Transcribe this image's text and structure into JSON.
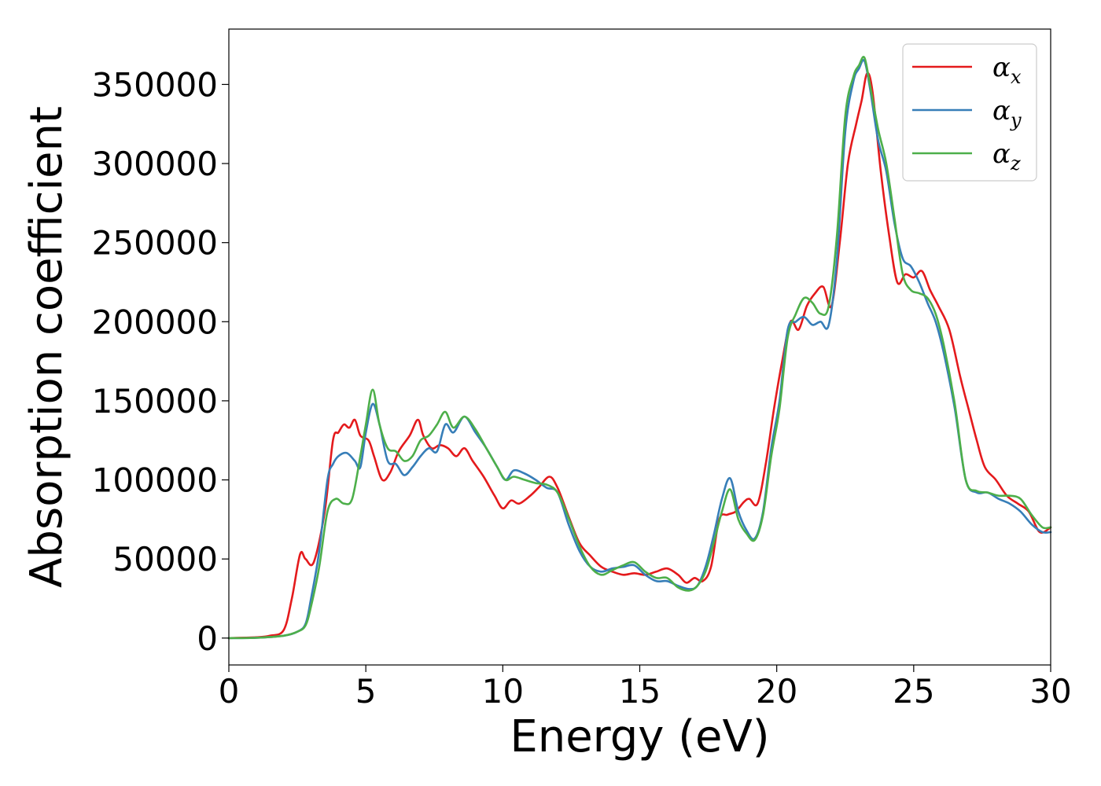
{
  "chart_data": {
    "type": "line",
    "title": "",
    "xlabel": "Energy (eV)",
    "ylabel": "Absorption coefficient",
    "xlim": [
      0,
      30
    ],
    "ylim": [
      -17000,
      385000
    ],
    "xticks": [
      0,
      5,
      10,
      15,
      20,
      25,
      30
    ],
    "yticks": [
      0,
      50000,
      100000,
      150000,
      200000,
      250000,
      300000,
      350000
    ],
    "grid": false,
    "legend_position": "top-right",
    "series": [
      {
        "name": "α",
        "subscript": "x",
        "color": "#e41a1c",
        "x": [
          0,
          1,
          1.5,
          2,
          2.3,
          2.6,
          2.8,
          3.1,
          3.5,
          3.8,
          4.0,
          4.2,
          4.4,
          4.6,
          4.8,
          5.1,
          5.3,
          5.6,
          5.9,
          6.2,
          6.6,
          6.9,
          7.1,
          7.4,
          7.7,
          8.0,
          8.3,
          8.6,
          8.9,
          9.3,
          9.7,
          10.0,
          10.3,
          10.6,
          11.0,
          11.3,
          11.7,
          12.0,
          12.4,
          12.8,
          13.2,
          13.6,
          14.0,
          14.4,
          14.8,
          15.2,
          15.6,
          16.0,
          16.4,
          16.7,
          17.0,
          17.3,
          17.6,
          17.9,
          18.2,
          18.5,
          18.8,
          19.0,
          19.3,
          19.6,
          19.9,
          20.2,
          20.5,
          20.8,
          21.1,
          21.4,
          21.7,
          22.0,
          22.3,
          22.6,
          22.9,
          23.1,
          23.3,
          23.5,
          23.8,
          24.1,
          24.4,
          24.7,
          25.0,
          25.3,
          25.6,
          25.9,
          26.3,
          26.7,
          27.0,
          27.3,
          27.6,
          28.0,
          28.4,
          28.8,
          29.2,
          29.6,
          30.0
        ],
        "y": [
          0,
          500,
          1500,
          5000,
          25000,
          53000,
          50000,
          48000,
          80000,
          125000,
          130000,
          135000,
          133000,
          138000,
          128000,
          125000,
          115000,
          100000,
          105000,
          118000,
          128000,
          138000,
          128000,
          120000,
          122000,
          120000,
          115000,
          120000,
          112000,
          102000,
          90000,
          82000,
          87000,
          85000,
          90000,
          95000,
          102000,
          95000,
          77000,
          60000,
          52000,
          45000,
          42000,
          40000,
          41000,
          40000,
          42000,
          44000,
          40000,
          35000,
          38000,
          36000,
          45000,
          75000,
          78000,
          80000,
          86000,
          88000,
          85000,
          110000,
          145000,
          175000,
          200000,
          195000,
          210000,
          218000,
          222000,
          210000,
          250000,
          300000,
          325000,
          340000,
          357000,
          345000,
          295000,
          255000,
          225000,
          230000,
          228000,
          232000,
          220000,
          210000,
          195000,
          165000,
          145000,
          125000,
          108000,
          100000,
          90000,
          85000,
          80000,
          67000,
          70000
        ]
      },
      {
        "name": "α",
        "subscript": "y",
        "color": "#377eb8",
        "x": [
          0,
          1,
          2,
          2.5,
          2.8,
          3.0,
          3.3,
          3.6,
          3.8,
          4.0,
          4.3,
          4.6,
          4.8,
          5.0,
          5.25,
          5.5,
          5.8,
          6.1,
          6.4,
          6.7,
          7.0,
          7.3,
          7.6,
          7.9,
          8.2,
          8.6,
          9.0,
          9.4,
          9.8,
          10.1,
          10.4,
          10.8,
          11.2,
          11.6,
          12.0,
          12.4,
          12.8,
          13.2,
          13.6,
          14.0,
          14.4,
          14.8,
          15.2,
          15.6,
          16.0,
          16.4,
          16.8,
          17.1,
          17.4,
          17.7,
          18.0,
          18.3,
          18.6,
          18.9,
          19.2,
          19.5,
          19.8,
          20.1,
          20.4,
          20.7,
          21.0,
          21.3,
          21.6,
          21.9,
          22.2,
          22.5,
          22.8,
          23.0,
          23.2,
          23.4,
          23.7,
          24.0,
          24.3,
          24.6,
          24.9,
          25.2,
          25.5,
          25.8,
          26.1,
          26.5,
          26.9,
          27.3,
          27.7,
          28.1,
          28.5,
          28.9,
          29.3,
          29.7,
          30.0
        ],
        "y": [
          0,
          200,
          1500,
          4000,
          9000,
          25000,
          55000,
          100000,
          110000,
          115000,
          117000,
          112000,
          108000,
          130000,
          148000,
          135000,
          112000,
          110000,
          103000,
          108000,
          115000,
          120000,
          118000,
          135000,
          130000,
          140000,
          130000,
          120000,
          108000,
          100000,
          106000,
          104000,
          100000,
          95000,
          92000,
          72000,
          55000,
          45000,
          42000,
          44000,
          45000,
          46000,
          40000,
          36000,
          36000,
          33000,
          31000,
          33000,
          45000,
          65000,
          88000,
          101000,
          80000,
          68000,
          63000,
          80000,
          120000,
          150000,
          195000,
          200000,
          203000,
          198000,
          200000,
          198000,
          240000,
          320000,
          352000,
          360000,
          365000,
          348000,
          315000,
          295000,
          262000,
          240000,
          235000,
          225000,
          212000,
          200000,
          180000,
          145000,
          100000,
          92000,
          92000,
          88000,
          85000,
          80000,
          72000,
          67000,
          67000
        ]
      },
      {
        "name": "α",
        "subscript": "z",
        "color": "#4daf4a",
        "x": [
          0,
          1,
          2,
          2.5,
          2.8,
          3.0,
          3.3,
          3.6,
          3.9,
          4.2,
          4.5,
          4.8,
          5.0,
          5.25,
          5.5,
          5.8,
          6.1,
          6.4,
          6.7,
          7.0,
          7.3,
          7.6,
          7.9,
          8.2,
          8.6,
          9.0,
          9.4,
          9.8,
          10.1,
          10.4,
          10.8,
          11.2,
          11.6,
          12.0,
          12.4,
          12.8,
          13.2,
          13.6,
          14.0,
          14.4,
          14.8,
          15.2,
          15.6,
          16.0,
          16.4,
          16.8,
          17.1,
          17.4,
          17.7,
          18.0,
          18.3,
          18.6,
          18.9,
          19.2,
          19.5,
          19.8,
          20.1,
          20.4,
          20.7,
          21.0,
          21.3,
          21.6,
          21.9,
          22.2,
          22.5,
          22.8,
          23.0,
          23.2,
          23.4,
          23.7,
          24.0,
          24.3,
          24.6,
          24.9,
          25.2,
          25.5,
          25.8,
          26.1,
          26.5,
          26.9,
          27.3,
          27.7,
          28.1,
          28.5,
          28.9,
          29.3,
          29.7,
          30.0
        ],
        "y": [
          0,
          200,
          1500,
          4000,
          8000,
          20000,
          45000,
          80000,
          88000,
          85000,
          88000,
          115000,
          135000,
          157000,
          135000,
          120000,
          118000,
          112000,
          115000,
          125000,
          128000,
          135000,
          143000,
          133000,
          140000,
          132000,
          120000,
          108000,
          100000,
          102000,
          100000,
          98000,
          97000,
          92000,
          76000,
          58000,
          45000,
          40000,
          43000,
          46000,
          48000,
          42000,
          38000,
          38000,
          32000,
          30000,
          33000,
          42000,
          60000,
          80000,
          94000,
          75000,
          66000,
          62000,
          78000,
          115000,
          145000,
          190000,
          205000,
          215000,
          212000,
          205000,
          210000,
          255000,
          330000,
          355000,
          362000,
          367000,
          350000,
          322000,
          300000,
          265000,
          230000,
          220000,
          218000,
          215000,
          205000,
          185000,
          148000,
          100000,
          93000,
          92000,
          90000,
          90000,
          88000,
          78000,
          70000,
          70000
        ]
      }
    ]
  }
}
